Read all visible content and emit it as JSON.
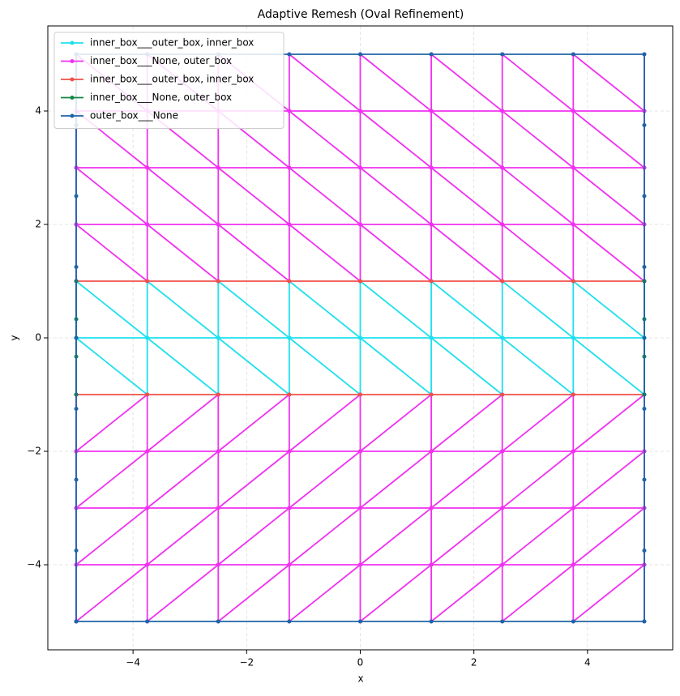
{
  "chart_data": {
    "type": "line",
    "title": "Adaptive Remesh (Oval Refinement)",
    "x_label": "x",
    "y_label": "y",
    "xlim": [
      -5.5,
      5.5
    ],
    "ylim": [
      -5.5,
      5.5
    ],
    "xticks": [
      {
        "value": -4,
        "label": "−4"
      },
      {
        "value": -2,
        "label": "−2"
      },
      0,
      2,
      4
    ],
    "yticks": [
      {
        "value": -4,
        "label": "−4"
      },
      {
        "value": -2,
        "label": "−2"
      },
      0,
      2,
      4
    ],
    "grid": true,
    "legend": "upper left",
    "marker": true,
    "series": [
      {
        "name": "inner_box___outer_box, inner_box",
        "color": "#1fe0ee",
        "x": [
          -5,
          -5,
          -3.75,
          -3.75,
          -2.5,
          -2.5,
          -1.25,
          -1.25,
          0,
          0,
          1.25,
          1.25,
          2.5,
          2.5,
          3.75,
          3.75,
          5,
          5,
          null,
          -5,
          -5,
          -3.75,
          -3.75,
          -2.5,
          -2.5,
          -1.25,
          -1.25,
          0,
          0,
          1.25,
          1.25,
          2.5,
          2.5,
          3.75,
          3.75,
          5,
          5,
          null,
          -5,
          -3.75,
          -2.5,
          -1.25,
          0,
          1.25,
          2.5,
          3.75,
          5
        ],
        "y": [
          -1,
          0,
          -1,
          0,
          -1,
          0,
          -1,
          0,
          -1,
          0,
          -1,
          0,
          -1,
          0,
          -1,
          0,
          -1,
          0,
          null,
          0,
          1,
          0,
          1,
          0,
          1,
          0,
          1,
          0,
          1,
          0,
          1,
          0,
          1,
          0,
          1,
          0,
          1,
          null,
          0,
          0,
          0,
          0,
          0,
          0,
          0,
          0,
          0
        ]
      },
      {
        "name": "inner_box___None, outer_box",
        "color": "#f032f0",
        "x": [
          -5,
          -5,
          -3.75,
          -3.75,
          -2.5,
          -2.5,
          -1.25,
          -1.25,
          0,
          0,
          1.25,
          1.25,
          2.5,
          2.5,
          3.75,
          3.75,
          5,
          5,
          null,
          -5,
          -5,
          -3.75,
          -3.75,
          -2.5,
          -2.5,
          -1.25,
          -1.25,
          0,
          0,
          1.25,
          1.25,
          2.5,
          2.5,
          3.75,
          3.75,
          5,
          5,
          null,
          -5,
          -5,
          -3.75,
          -3.75,
          -2.5,
          -2.5,
          -1.25,
          -1.25,
          0,
          0,
          1.25,
          1.25,
          2.5,
          2.5,
          3.75,
          3.75,
          5,
          5,
          null,
          -5,
          -5,
          -3.75,
          -3.75,
          -2.5,
          -2.5,
          -1.25,
          -1.25,
          0,
          0,
          1.25,
          1.25,
          2.5,
          2.5,
          3.75,
          3.75,
          5,
          5,
          null,
          -5,
          -5,
          -3.75,
          -3.75,
          -2.5,
          -2.5,
          -1.25,
          -1.25,
          0,
          0,
          1.25,
          1.25,
          2.5,
          2.5,
          3.75,
          3.75,
          5,
          5,
          null,
          -5,
          -5,
          -3.75,
          -3.75,
          -2.5,
          -2.5,
          -1.25,
          -1.25,
          0,
          0,
          1.25,
          1.25,
          2.5,
          2.5,
          3.75,
          3.75,
          5,
          5,
          null,
          -5,
          -5,
          -3.75,
          -3.75,
          -2.5,
          -2.5,
          -1.25,
          -1.25,
          0,
          0,
          1.25,
          1.25,
          2.5,
          2.5,
          3.75,
          3.75,
          5,
          5,
          null,
          -5,
          -5,
          -3.75,
          -3.75,
          -2.5,
          -2.5,
          -1.25,
          -1.25,
          0,
          0,
          1.25,
          1.25,
          2.5,
          2.5,
          3.75,
          3.75,
          5,
          5,
          null,
          -5,
          -3.75,
          -2.5,
          -1.25,
          0,
          1.25,
          2.5,
          3.75,
          5,
          null,
          -5,
          -3.75,
          -2.5,
          -1.25,
          0,
          1.25,
          2.5,
          3.75,
          5,
          null,
          -5,
          -3.75,
          -2.5,
          -1.25,
          0,
          1.25,
          2.5,
          3.75,
          5,
          null,
          -5,
          -3.75,
          -2.5,
          -1.25,
          0,
          1.25,
          2.5,
          3.75,
          5,
          null,
          -5,
          -3.75,
          -2.5,
          -1.25,
          0,
          1.25,
          2.5,
          3.75,
          5,
          null,
          -5,
          -3.75,
          -2.5,
          -1.25,
          0,
          1.25,
          2.5,
          3.75,
          5
        ],
        "y": [
          1,
          2,
          1,
          2,
          1,
          2,
          1,
          2,
          1,
          2,
          1,
          2,
          1,
          2,
          1,
          2,
          1,
          2,
          null,
          2,
          3,
          2,
          3,
          2,
          3,
          2,
          3,
          2,
          3,
          2,
          3,
          2,
          3,
          2,
          3,
          2,
          3,
          null,
          3,
          4,
          3,
          4,
          3,
          4,
          3,
          4,
          3,
          4,
          3,
          4,
          3,
          4,
          3,
          4,
          3,
          4,
          null,
          4,
          5,
          4,
          5,
          4,
          5,
          4,
          5,
          4,
          5,
          4,
          5,
          4,
          5,
          4,
          5,
          4,
          5,
          null,
          -1,
          -2,
          -1,
          -2,
          -1,
          -2,
          -1,
          -2,
          -1,
          -2,
          -1,
          -2,
          -1,
          -2,
          -1,
          -2,
          -1,
          -2,
          null,
          -2,
          -3,
          -2,
          -3,
          -2,
          -3,
          -2,
          -3,
          -2,
          -3,
          -2,
          -3,
          -2,
          -3,
          -2,
          -3,
          -2,
          -3,
          null,
          -3,
          -4,
          -3,
          -4,
          -3,
          -4,
          -3,
          -4,
          -3,
          -4,
          -3,
          -4,
          -3,
          -4,
          -3,
          -4,
          -3,
          -4,
          null,
          -4,
          -5,
          -4,
          -5,
          -4,
          -5,
          -4,
          -5,
          -4,
          -5,
          -4,
          -5,
          -4,
          -5,
          -4,
          -5,
          -4,
          -5,
          null,
          2,
          2,
          2,
          2,
          2,
          2,
          2,
          2,
          2,
          null,
          3,
          3,
          3,
          3,
          3,
          3,
          3,
          3,
          3,
          null,
          4,
          4,
          4,
          4,
          4,
          4,
          4,
          4,
          4,
          null,
          -2,
          -2,
          -2,
          -2,
          -2,
          -2,
          -2,
          -2,
          -2,
          null,
          -3,
          -3,
          -3,
          -3,
          -3,
          -3,
          -3,
          -3,
          -3,
          null,
          -4,
          -4,
          -4,
          -4,
          -4,
          -4,
          -4,
          -4,
          -4
        ]
      },
      {
        "name": "inner_box___outer_box, inner_box",
        "color": "#f0504a",
        "x": [
          -5,
          -3.75,
          -2.5,
          -1.25,
          0,
          1.25,
          2.5,
          3.75,
          5,
          null,
          -5,
          -3.75,
          -2.5,
          -1.25,
          0,
          1.25,
          2.5,
          3.75,
          5
        ],
        "y": [
          1,
          1,
          1,
          1,
          1,
          1,
          1,
          1,
          1,
          null,
          -1,
          -1,
          -1,
          -1,
          -1,
          -1,
          -1,
          -1,
          -1
        ]
      },
      {
        "name": "inner_box___None, outer_box",
        "color": "#118844",
        "x": [
          -5,
          -5,
          -5,
          -5,
          null,
          5,
          5,
          5,
          5
        ],
        "y": [
          -1,
          -0.33,
          0.33,
          1,
          null,
          -1,
          -0.33,
          0.33,
          1
        ]
      },
      {
        "name": "outer_box___None",
        "color": "#1f64a8",
        "x": [
          -5,
          -3.75,
          -2.5,
          -1.25,
          0,
          1.25,
          2.5,
          3.75,
          5,
          5,
          5,
          5,
          5,
          5,
          5,
          5,
          5,
          3.75,
          2.5,
          1.25,
          0,
          -1.25,
          -2.5,
          -3.75,
          -5,
          -5,
          -5,
          -5,
          -5,
          -5,
          -5,
          -5,
          -5
        ],
        "y": [
          -5,
          -5,
          -5,
          -5,
          -5,
          -5,
          -5,
          -5,
          -5,
          -3.75,
          -2.5,
          -1.25,
          0,
          1.25,
          2.5,
          3.75,
          5,
          5,
          5,
          5,
          5,
          5,
          5,
          5,
          5,
          3.75,
          2.5,
          1.25,
          0,
          -1.25,
          -2.5,
          -3.75,
          -5
        ]
      }
    ]
  }
}
